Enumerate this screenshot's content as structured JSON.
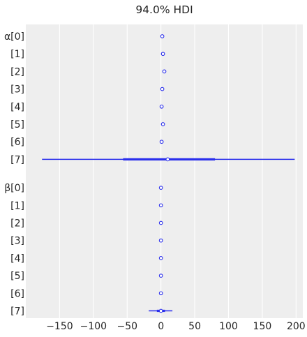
{
  "chart_data": {
    "type": "forest",
    "title": "94.0% HDI",
    "xlabel": "",
    "ylabel": "",
    "xlim": [
      -200,
      210
    ],
    "x_ticks": [
      -150,
      -100,
      -50,
      0,
      50,
      100,
      150,
      200
    ],
    "x_tick_labels": [
      "−150",
      "−100",
      "−50",
      "0",
      "50",
      "100",
      "150",
      "200"
    ],
    "grid": true,
    "groups": [
      {
        "name": "α",
        "rows": [
          {
            "label": "α[0]",
            "mean": 2,
            "hdi": [
              1.5,
              2.5
            ],
            "iqr": [
              1.8,
              2.2
            ]
          },
          {
            "label": "[1]",
            "mean": 3,
            "hdi": [
              2.5,
              3.5
            ],
            "iqr": [
              2.8,
              3.2
            ]
          },
          {
            "label": "[2]",
            "mean": 5,
            "hdi": [
              4.5,
              5.5
            ],
            "iqr": [
              4.8,
              5.2
            ]
          },
          {
            "label": "[3]",
            "mean": 2,
            "hdi": [
              1.5,
              2.5
            ],
            "iqr": [
              1.8,
              2.2
            ]
          },
          {
            "label": "[4]",
            "mean": 1,
            "hdi": [
              0.5,
              1.5
            ],
            "iqr": [
              0.8,
              1.2
            ]
          },
          {
            "label": "[5]",
            "mean": 3,
            "hdi": [
              2.5,
              3.5
            ],
            "iqr": [
              2.8,
              3.2
            ]
          },
          {
            "label": "[6]",
            "mean": 1,
            "hdi": [
              0.5,
              1.5
            ],
            "iqr": [
              0.8,
              1.2
            ]
          },
          {
            "label": "[7]",
            "mean": 10,
            "hdi": [
              -176,
              198
            ],
            "iqr": [
              -56,
              80
            ]
          }
        ]
      },
      {
        "name": "β",
        "rows": [
          {
            "label": "β[0]",
            "mean": 0,
            "hdi": [
              -0.5,
              0.5
            ],
            "iqr": [
              -0.2,
              0.2
            ]
          },
          {
            "label": "[1]",
            "mean": 0,
            "hdi": [
              -0.5,
              0.5
            ],
            "iqr": [
              -0.2,
              0.2
            ]
          },
          {
            "label": "[2]",
            "mean": 0,
            "hdi": [
              -0.5,
              0.5
            ],
            "iqr": [
              -0.2,
              0.2
            ]
          },
          {
            "label": "[3]",
            "mean": 0,
            "hdi": [
              -0.5,
              0.5
            ],
            "iqr": [
              -0.2,
              0.2
            ]
          },
          {
            "label": "[4]",
            "mean": 0,
            "hdi": [
              -0.5,
              0.5
            ],
            "iqr": [
              -0.2,
              0.2
            ]
          },
          {
            "label": "[5]",
            "mean": 0,
            "hdi": [
              -0.5,
              0.5
            ],
            "iqr": [
              -0.2,
              0.2
            ]
          },
          {
            "label": "[6]",
            "mean": 0,
            "hdi": [
              -0.5,
              0.5
            ],
            "iqr": [
              -0.2,
              0.2
            ]
          },
          {
            "label": "[7]",
            "mean": 0,
            "hdi": [
              -18,
              17
            ],
            "iqr": [
              -6,
              6
            ]
          }
        ]
      }
    ],
    "colors": {
      "background": "#eeeeee",
      "grid": "#ffffff",
      "series": "#2a2eec",
      "marker_fill": "#ffffff",
      "text": "#262626"
    }
  }
}
